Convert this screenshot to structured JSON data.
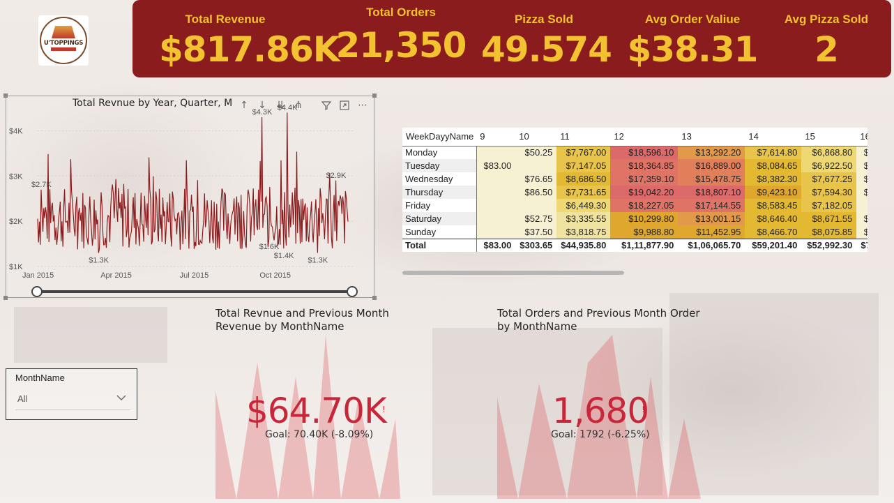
{
  "logo": {
    "text": "U'TOPPINGS"
  },
  "kpis": [
    {
      "label": "Total Revenue",
      "value": "$817.86K"
    },
    {
      "label": "Total Orders",
      "value": "21,350"
    },
    {
      "label": "Pizza Sold",
      "value": "49.574"
    },
    {
      "label": "Avg Order Valiue",
      "value": "$38.31"
    },
    {
      "label": "Avg Pizza Sold",
      "value": "2"
    }
  ],
  "line_chart": {
    "title": "Total Revnue by Year, Quarter, M",
    "toolbar": [
      "arrow-up-icon",
      "arrow-down-icon",
      "double-arrow-down-icon",
      "expand-hierarchy-icon",
      "filter-icon",
      "focus-mode-icon",
      "more-options-icon"
    ],
    "chart_data": {
      "type": "line",
      "color": "#8b1c1e",
      "yticks": [
        "$1K",
        "$2K",
        "$3K",
        "$4K"
      ],
      "xticks": [
        "Jan 2015",
        "Apr 2015",
        "Jul 2015",
        "Oct 2015"
      ],
      "ylim": [
        1000,
        4300
      ],
      "annotations": [
        {
          "text": "$2.7K",
          "day": 4,
          "value": 2700
        },
        {
          "text": "$1.3K",
          "day": 70,
          "value": 1300
        },
        {
          "text": "$4.3K",
          "day": 258,
          "value": 4300
        },
        {
          "text": "$4.4K",
          "day": 287,
          "value": 4400
        },
        {
          "text": "$1.6K",
          "day": 266,
          "value": 1600
        },
        {
          "text": "$1.4K",
          "day": 283,
          "value": 1400
        },
        {
          "text": "$1.3K",
          "day": 322,
          "value": 1300
        },
        {
          "text": "$2.9K",
          "day": 343,
          "value": 2900
        }
      ]
    }
  },
  "matrix": {
    "corner": "WeekDayyName",
    "columns": [
      "9",
      "10",
      "11",
      "12",
      "13",
      "14",
      "15",
      "16"
    ],
    "rows": [
      {
        "name": "Monday",
        "cells": [
          "",
          "$50.25",
          "$7,767.00",
          "$18,596.10",
          "$13,292.20",
          "$7,614.80",
          "$6,868.80",
          "$1"
        ]
      },
      {
        "name": "Tuesday",
        "cells": [
          "$83.00",
          "",
          "$7,147.05",
          "$18,364.85",
          "$16,889.00",
          "$8,084.65",
          "$6,922.50",
          "$1"
        ]
      },
      {
        "name": "Wednesday",
        "cells": [
          "",
          "$76.65",
          "$8,686.50",
          "$17,359.10",
          "$15,478.75",
          "$8,382.30",
          "$7,677.25",
          "$1"
        ]
      },
      {
        "name": "Thursday",
        "cells": [
          "",
          "$86.50",
          "$7,731.65",
          "$19,042.20",
          "$18,807.10",
          "$9,423.10",
          "$7,594.30",
          "$1"
        ]
      },
      {
        "name": "Friday",
        "cells": [
          "",
          "",
          "$6,449.30",
          "$18,227.05",
          "$17,144.55",
          "$8,583.45",
          "$7,182.05",
          "$"
        ]
      },
      {
        "name": "Saturday",
        "cells": [
          "",
          "$52.75",
          "$3,335.55",
          "$10,299.80",
          "$13,001.15",
          "$8,646.40",
          "$8,671.55",
          "$1"
        ]
      },
      {
        "name": "Sunday",
        "cells": [
          "",
          "$37.50",
          "$3,818.75",
          "$9,988.80",
          "$11,452.95",
          "$8,466.70",
          "$8,075.85",
          "$1"
        ]
      }
    ],
    "total": {
      "name": "Total",
      "cells": [
        "$83.00",
        "$303.65",
        "$44,935.80",
        "$1,11,877.90",
        "$1,06,065.70",
        "$59,201.40",
        "$52,992.30",
        "$7("
      ]
    }
  },
  "revenue_card": {
    "title_line1": "Total Revnue and Previous Month",
    "title_line2": "Revenue by MonthName",
    "value": "$64.70K",
    "alert": "!",
    "goal": "Goal: 70.40K (-8.09%)"
  },
  "orders_card": {
    "title_line1": "Total Orders and Previous Month Order",
    "title_line2": "by MonthName",
    "value": "1,680",
    "alert": "!",
    "goal": "Goal: 1792 (-6.25%)"
  },
  "slicer": {
    "title": "MonthName",
    "value": "All"
  }
}
